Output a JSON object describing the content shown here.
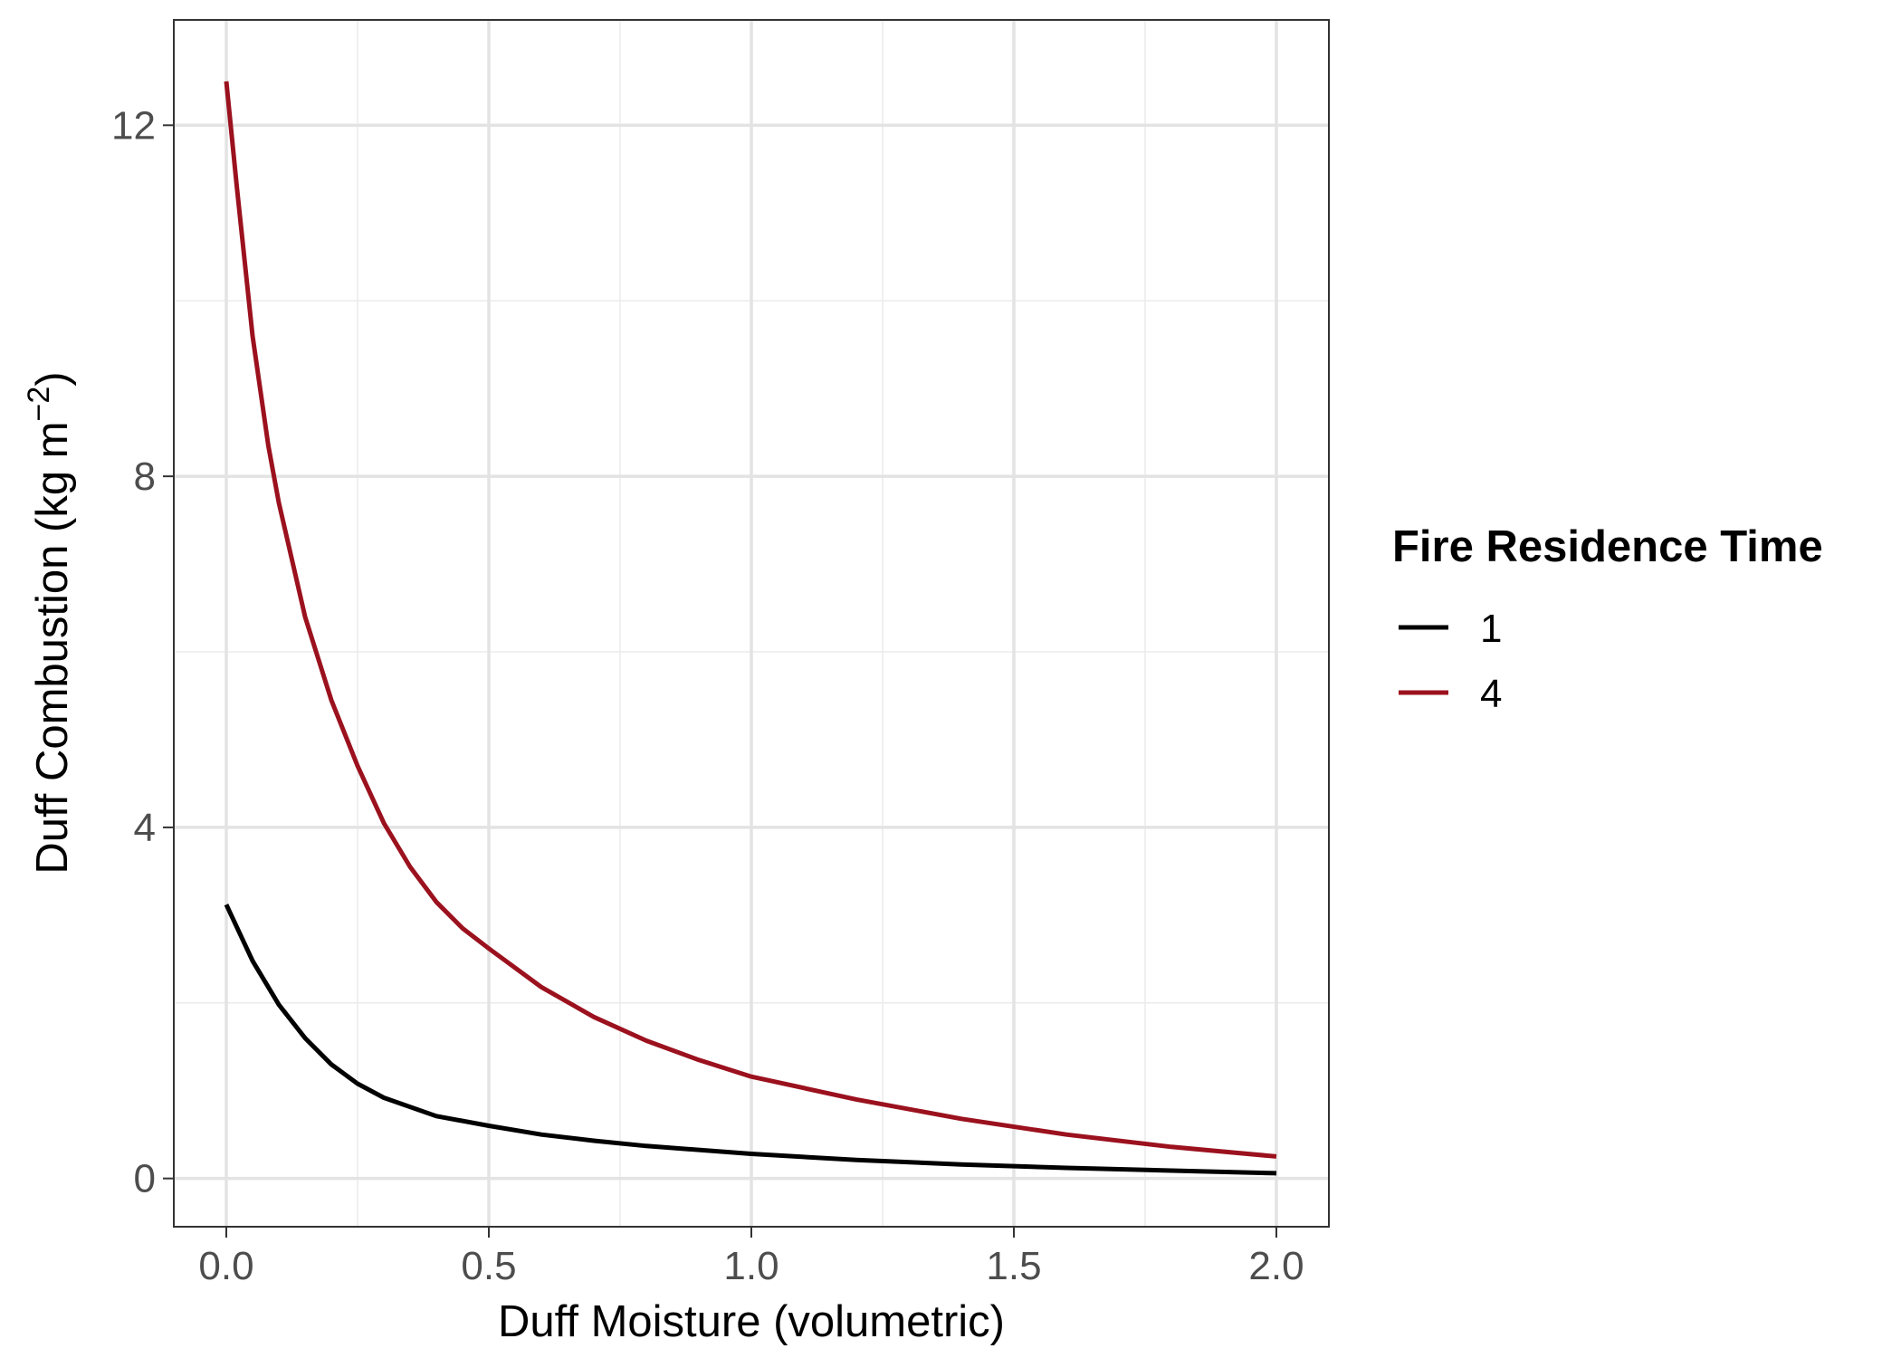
{
  "chart_data": {
    "type": "line",
    "xlabel": "Duff Moisture (volumetric)",
    "ylabel": "Duff Combustion (kg m",
    "ylabel_superscript": "−2",
    "ylabel_close": ")",
    "xlim": [
      -0.1,
      2.1
    ],
    "ylim": [
      -0.55,
      13.2
    ],
    "x_ticks": [
      0.0,
      0.5,
      1.0,
      1.5,
      2.0
    ],
    "x_tick_labels": [
      "0.0",
      "0.5",
      "1.0",
      "1.5",
      "2.0"
    ],
    "y_ticks": [
      0,
      4,
      8,
      12
    ],
    "y_tick_labels": [
      "0",
      "4",
      "8",
      "12"
    ],
    "x_minor_grid": [
      0.25,
      0.75,
      1.25,
      1.75
    ],
    "y_minor_grid": [
      2,
      6,
      10
    ],
    "grid": true,
    "legend": {
      "title": "Fire Residence Time",
      "position": "right"
    },
    "series": [
      {
        "name": "1",
        "color": "#000000",
        "x": [
          0.0,
          0.05,
          0.1,
          0.15,
          0.2,
          0.25,
          0.3,
          0.4,
          0.5,
          0.6,
          0.7,
          0.8,
          1.0,
          1.2,
          1.4,
          1.6,
          1.8,
          2.0
        ],
        "y": [
          3.12,
          2.48,
          1.98,
          1.6,
          1.3,
          1.08,
          0.92,
          0.71,
          0.6,
          0.5,
          0.43,
          0.37,
          0.28,
          0.21,
          0.16,
          0.12,
          0.09,
          0.06
        ]
      },
      {
        "name": "4",
        "color": "#9b111e",
        "x": [
          0.0,
          0.02,
          0.05,
          0.08,
          0.1,
          0.15,
          0.2,
          0.25,
          0.3,
          0.35,
          0.4,
          0.45,
          0.5,
          0.6,
          0.7,
          0.8,
          0.9,
          1.0,
          1.2,
          1.4,
          1.6,
          1.8,
          2.0
        ],
        "y": [
          12.5,
          11.3,
          9.6,
          8.35,
          7.7,
          6.4,
          5.45,
          4.7,
          4.05,
          3.55,
          3.15,
          2.85,
          2.62,
          2.18,
          1.84,
          1.57,
          1.35,
          1.16,
          0.9,
          0.68,
          0.5,
          0.36,
          0.25
        ]
      }
    ]
  }
}
